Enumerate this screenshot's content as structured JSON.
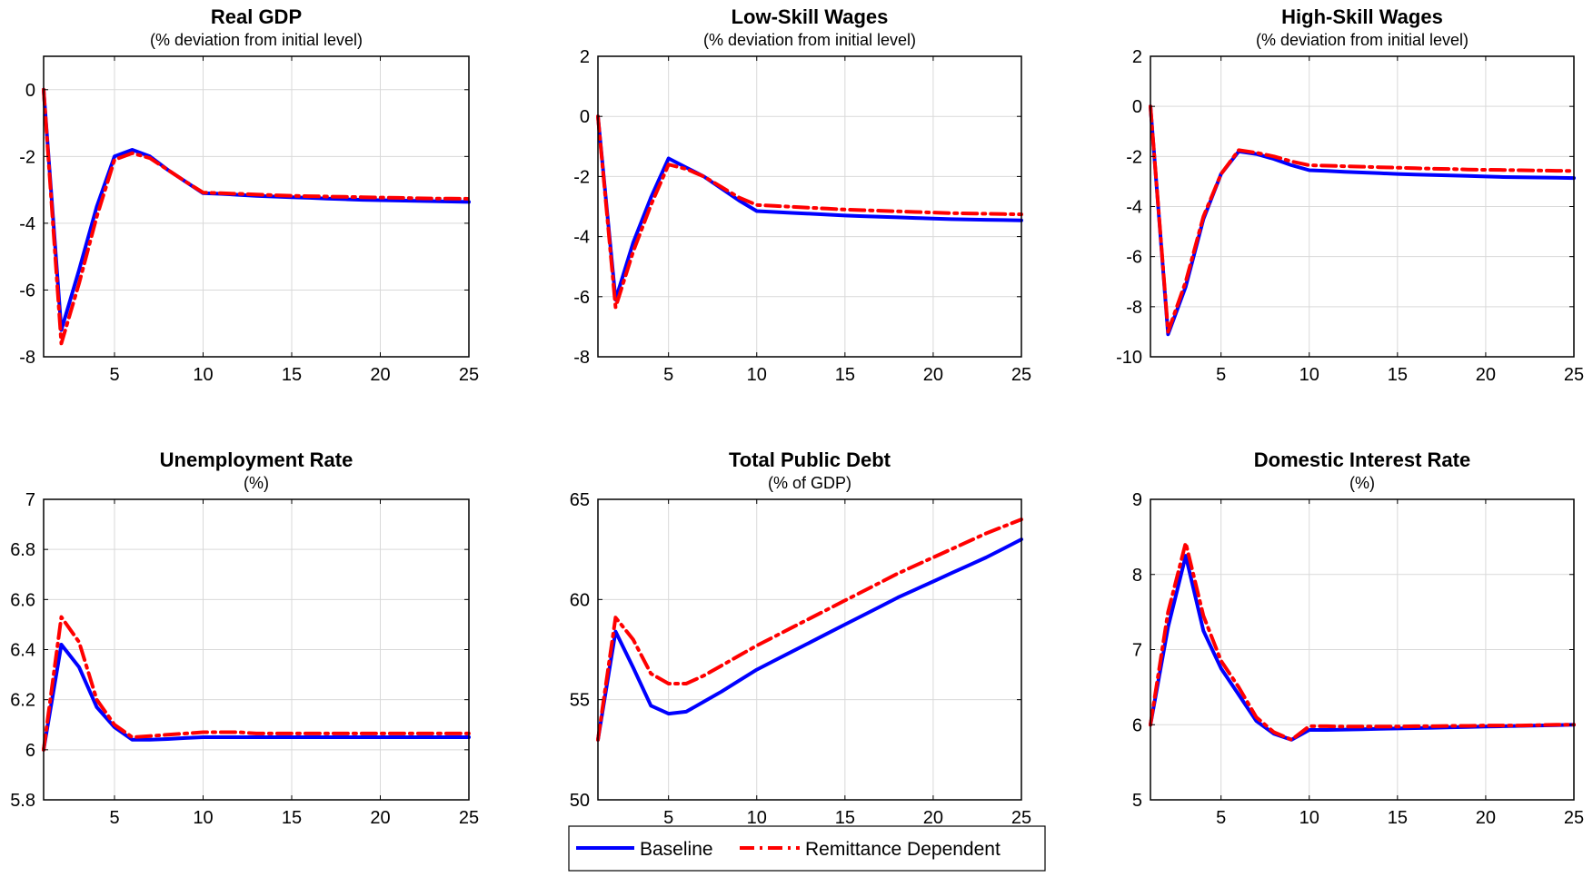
{
  "legend": {
    "baseline_label": "Baseline",
    "remittance_label": "Remittance Dependent"
  },
  "colors": {
    "baseline": "#0000ff",
    "remittance": "#ff0000",
    "grid": "#d9d9d9",
    "axis": "#000000"
  },
  "chart_data": [
    {
      "type": "line",
      "title": "Real GDP",
      "subtitle": "(% deviation from initial level)",
      "xlim": [
        1,
        25
      ],
      "ylim": [
        -8,
        1
      ],
      "xticks": [
        5,
        10,
        15,
        20,
        25
      ],
      "yticks": [
        -8,
        -6,
        -4,
        -2,
        0
      ],
      "grid": true,
      "x": [
        1,
        2,
        3,
        4,
        5,
        6,
        7,
        8,
        9,
        10,
        11,
        12,
        13,
        14,
        15,
        16,
        17,
        18,
        19,
        20,
        21,
        22,
        23,
        24,
        25
      ],
      "series": [
        {
          "name": "Baseline",
          "values": [
            0,
            -7.2,
            -5.4,
            -3.5,
            -2.0,
            -1.8,
            -2.0,
            -2.4,
            -2.75,
            -3.1,
            -3.12,
            -3.15,
            -3.18,
            -3.2,
            -3.22,
            -3.24,
            -3.26,
            -3.28,
            -3.3,
            -3.31,
            -3.32,
            -3.33,
            -3.34,
            -3.35,
            -3.36
          ]
        },
        {
          "name": "Remittance Dependent",
          "values": [
            0,
            -7.6,
            -5.8,
            -3.8,
            -2.1,
            -1.9,
            -2.05,
            -2.4,
            -2.75,
            -3.08,
            -3.1,
            -3.12,
            -3.14,
            -3.16,
            -3.18,
            -3.19,
            -3.2,
            -3.21,
            -3.22,
            -3.23,
            -3.24,
            -3.25,
            -3.26,
            -3.26,
            -3.27
          ]
        }
      ]
    },
    {
      "type": "line",
      "title": "Low-Skill Wages",
      "subtitle": "(% deviation from initial level)",
      "xlim": [
        1,
        25
      ],
      "ylim": [
        -8,
        2
      ],
      "xticks": [
        5,
        10,
        15,
        20,
        25
      ],
      "yticks": [
        -8,
        -6,
        -4,
        -2,
        0,
        2
      ],
      "grid": true,
      "x": [
        1,
        2,
        3,
        4,
        5,
        6,
        7,
        8,
        9,
        10,
        11,
        12,
        13,
        14,
        15,
        16,
        17,
        18,
        19,
        20,
        21,
        22,
        23,
        24,
        25
      ],
      "series": [
        {
          "name": "Baseline",
          "values": [
            0,
            -6.1,
            -4.2,
            -2.7,
            -1.4,
            -1.7,
            -2.0,
            -2.4,
            -2.8,
            -3.15,
            -3.18,
            -3.21,
            -3.24,
            -3.27,
            -3.3,
            -3.32,
            -3.34,
            -3.36,
            -3.38,
            -3.4,
            -3.42,
            -3.43,
            -3.44,
            -3.45,
            -3.46
          ]
        },
        {
          "name": "Remittance Dependent",
          "values": [
            0,
            -6.35,
            -4.5,
            -2.95,
            -1.6,
            -1.75,
            -2.0,
            -2.35,
            -2.7,
            -2.95,
            -2.98,
            -3.01,
            -3.04,
            -3.07,
            -3.1,
            -3.12,
            -3.14,
            -3.16,
            -3.18,
            -3.2,
            -3.22,
            -3.23,
            -3.24,
            -3.25,
            -3.26
          ]
        }
      ]
    },
    {
      "type": "line",
      "title": "High-Skill Wages",
      "subtitle": "(% deviation from initial level)",
      "xlim": [
        1,
        25
      ],
      "ylim": [
        -10,
        2
      ],
      "xticks": [
        5,
        10,
        15,
        20,
        25
      ],
      "yticks": [
        -10,
        -8,
        -6,
        -4,
        -2,
        0,
        2
      ],
      "grid": true,
      "x": [
        1,
        2,
        3,
        4,
        5,
        6,
        7,
        8,
        9,
        10,
        11,
        12,
        13,
        14,
        15,
        16,
        17,
        18,
        19,
        20,
        21,
        22,
        23,
        24,
        25
      ],
      "series": [
        {
          "name": "Baseline",
          "values": [
            0,
            -9.1,
            -7.2,
            -4.5,
            -2.7,
            -1.8,
            -1.9,
            -2.1,
            -2.35,
            -2.55,
            -2.58,
            -2.61,
            -2.64,
            -2.67,
            -2.7,
            -2.72,
            -2.74,
            -2.76,
            -2.78,
            -2.8,
            -2.82,
            -2.83,
            -2.84,
            -2.85,
            -2.86
          ]
        },
        {
          "name": "Remittance Dependent",
          "values": [
            0,
            -9.0,
            -7.0,
            -4.4,
            -2.7,
            -1.75,
            -1.85,
            -2.0,
            -2.2,
            -2.35,
            -2.37,
            -2.39,
            -2.41,
            -2.43,
            -2.45,
            -2.47,
            -2.49,
            -2.5,
            -2.52,
            -2.53,
            -2.54,
            -2.55,
            -2.56,
            -2.57,
            -2.58
          ]
        }
      ]
    },
    {
      "type": "line",
      "title": "Unemployment Rate",
      "subtitle": "(%)",
      "xlim": [
        1,
        25
      ],
      "ylim": [
        5.8,
        7
      ],
      "xticks": [
        5,
        10,
        15,
        20,
        25
      ],
      "yticks": [
        5.8,
        6,
        6.2,
        6.4,
        6.6,
        6.8,
        7
      ],
      "grid": true,
      "x": [
        1,
        2,
        3,
        4,
        5,
        6,
        7,
        8,
        9,
        10,
        11,
        12,
        13,
        14,
        15,
        16,
        17,
        18,
        19,
        20,
        21,
        22,
        23,
        24,
        25
      ],
      "series": [
        {
          "name": "Baseline",
          "values": [
            6.0,
            6.42,
            6.33,
            6.17,
            6.09,
            6.04,
            6.04,
            6.043,
            6.047,
            6.05,
            6.05,
            6.05,
            6.05,
            6.05,
            6.05,
            6.05,
            6.05,
            6.05,
            6.05,
            6.05,
            6.05,
            6.05,
            6.05,
            6.05,
            6.05
          ]
        },
        {
          "name": "Remittance Dependent",
          "values": [
            6.0,
            6.53,
            6.43,
            6.2,
            6.1,
            6.05,
            6.055,
            6.06,
            6.065,
            6.07,
            6.07,
            6.07,
            6.065,
            6.065,
            6.065,
            6.065,
            6.065,
            6.065,
            6.065,
            6.065,
            6.065,
            6.065,
            6.065,
            6.065,
            6.065
          ]
        }
      ]
    },
    {
      "type": "line",
      "title": "Total Public Debt",
      "subtitle": "(% of GDP)",
      "xlim": [
        1,
        25
      ],
      "ylim": [
        50,
        65
      ],
      "xticks": [
        5,
        10,
        15,
        20,
        25
      ],
      "yticks": [
        50,
        55,
        60,
        65
      ],
      "grid": true,
      "x": [
        1,
        2,
        3,
        4,
        5,
        6,
        7,
        8,
        9,
        10,
        11,
        12,
        13,
        14,
        15,
        16,
        17,
        18,
        19,
        20,
        21,
        22,
        23,
        24,
        25
      ],
      "series": [
        {
          "name": "Baseline",
          "values": [
            53.0,
            58.4,
            56.6,
            54.7,
            54.3,
            54.4,
            54.9,
            55.4,
            55.95,
            56.5,
            56.95,
            57.4,
            57.85,
            58.3,
            58.75,
            59.2,
            59.65,
            60.1,
            60.5,
            60.9,
            61.3,
            61.7,
            62.1,
            62.55,
            63.0
          ]
        },
        {
          "name": "Remittance Dependent",
          "values": [
            53.0,
            59.1,
            58.0,
            56.3,
            55.8,
            55.8,
            56.2,
            56.7,
            57.2,
            57.7,
            58.15,
            58.6,
            59.05,
            59.5,
            59.95,
            60.4,
            60.85,
            61.3,
            61.7,
            62.1,
            62.5,
            62.9,
            63.3,
            63.65,
            64.0
          ]
        }
      ]
    },
    {
      "type": "line",
      "title": "Domestic Interest Rate",
      "subtitle": "(%)",
      "xlim": [
        1,
        25
      ],
      "ylim": [
        5,
        9
      ],
      "xticks": [
        5,
        10,
        15,
        20,
        25
      ],
      "yticks": [
        5,
        6,
        7,
        8,
        9
      ],
      "grid": true,
      "x": [
        1,
        2,
        3,
        4,
        5,
        6,
        7,
        8,
        9,
        10,
        11,
        12,
        13,
        14,
        15,
        16,
        17,
        18,
        19,
        20,
        21,
        22,
        23,
        24,
        25
      ],
      "series": [
        {
          "name": "Baseline",
          "values": [
            6.0,
            7.3,
            8.25,
            7.25,
            6.75,
            6.4,
            6.05,
            5.88,
            5.8,
            5.93,
            5.93,
            5.935,
            5.94,
            5.945,
            5.95,
            5.955,
            5.96,
            5.965,
            5.97,
            5.975,
            5.98,
            5.985,
            5.99,
            5.995,
            6.0
          ]
        },
        {
          "name": "Remittance Dependent",
          "values": [
            6.0,
            7.5,
            8.42,
            7.45,
            6.85,
            6.5,
            6.1,
            5.9,
            5.8,
            5.98,
            5.98,
            5.975,
            5.975,
            5.975,
            5.975,
            5.98,
            5.98,
            5.985,
            5.985,
            5.99,
            5.99,
            5.99,
            5.995,
            6.0,
            6.0
          ]
        }
      ]
    }
  ]
}
